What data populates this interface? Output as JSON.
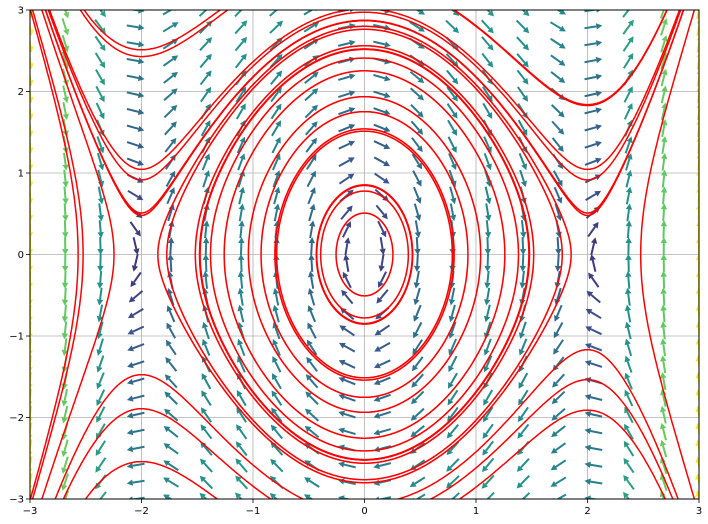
{
  "chart_data": {
    "type": "quiver+streamplot",
    "title": "",
    "xlabel": "",
    "ylabel": "",
    "xlim": [
      -3,
      3
    ],
    "ylim": [
      -3,
      3
    ],
    "grid": true,
    "x_ticks": [
      -3,
      -2,
      -1,
      0,
      1,
      2,
      3
    ],
    "y_ticks": [
      -3,
      -2,
      -1,
      0,
      1,
      2,
      3
    ],
    "x_tick_labels": [
      "−3",
      "−2",
      "−1",
      "0",
      "1",
      "2",
      "3"
    ],
    "y_tick_labels": [
      "−3",
      "−2",
      "−1",
      "0",
      "1",
      "2",
      "3"
    ],
    "vector_field": {
      "dx": "y",
      "dy": "x^3 - 4x",
      "arrow_grid_x": {
        "from": -3,
        "to": 3,
        "count": 20
      },
      "arrow_grid_y": {
        "from": -3,
        "to": 3,
        "count": 30
      },
      "colormap": [
        "#440154",
        "#3b528b",
        "#21918c",
        "#5ec962",
        "#fde725"
      ],
      "color_by": "magnitude"
    },
    "trajectories": {
      "color": "#ff0000",
      "seeds": [
        [
          -2.8,
          -2.0
        ],
        [
          -2.6,
          1.0
        ],
        [
          -2.4,
          -1.0
        ],
        [
          -2.2,
          2.5
        ],
        [
          -2.0,
          0.0
        ],
        [
          -1.9,
          -1.5
        ],
        [
          -1.7,
          0.5
        ],
        [
          -1.5,
          2.8
        ],
        [
          -1.3,
          -2.5
        ],
        [
          -1.1,
          1.5
        ],
        [
          -1.0,
          -0.5
        ],
        [
          -0.8,
          2.0
        ],
        [
          -0.6,
          -1.0
        ],
        [
          -0.4,
          0.3
        ],
        [
          -0.25,
          -0.1
        ],
        [
          -0.15,
          0.8
        ],
        [
          0.1,
          1.5
        ],
        [
          0.3,
          -0.5
        ],
        [
          0.5,
          2.2
        ],
        [
          0.7,
          -1.8
        ],
        [
          0.9,
          0.4
        ],
        [
          1.1,
          -2.5
        ],
        [
          1.3,
          1.0
        ],
        [
          1.5,
          -0.3
        ],
        [
          1.7,
          2.0
        ],
        [
          1.9,
          -1.2
        ],
        [
          2.05,
          0.5
        ],
        [
          2.2,
          -2.0
        ],
        [
          2.35,
          1.5
        ],
        [
          2.5,
          -0.5
        ],
        [
          2.7,
          2.5
        ],
        [
          -2.3,
          -2.7
        ],
        [
          0.0,
          -2.8
        ],
        [
          -0.5,
          2.7
        ],
        [
          1.0,
          2.8
        ]
      ]
    }
  }
}
